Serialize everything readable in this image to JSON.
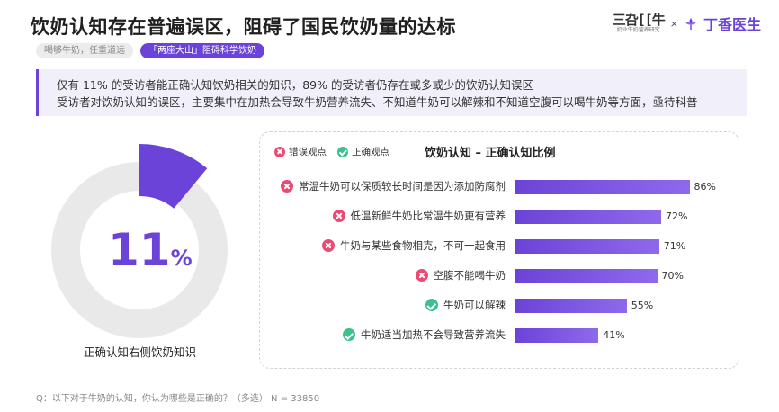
{
  "header": {
    "title": "饮奶认知存在普遍误区，阻碍了国民饮奶量的达标",
    "tags": [
      "喝够牛奶，任重道远",
      "「两座大山」阻碍科学饮奶"
    ]
  },
  "brand": {
    "partner_big": "三叴[[牛",
    "partner_small": "奶业牛奶营养研究",
    "times": "×",
    "name": "丁香医生",
    "color": "#6c43d8"
  },
  "callout": {
    "line1": "仅有 11% 的受访者能正确认知饮奶相关的知识，89% 的受访者仍存在或多或少的饮奶认知误区",
    "line2": "受访者对饮奶认知的误区，主要集中在加热会导致牛奶营养流失、不知道牛奶可以解辣和不知道空腹可以喝牛奶等方面，亟待科普"
  },
  "donut": {
    "value_text": "11",
    "unit": "%",
    "caption": "正确认知右侧饮奶知识"
  },
  "panel": {
    "title": "饮奶认知 – 正确认知比例",
    "legend_wrong": "错误观点",
    "legend_right": "正确观点"
  },
  "chart_data": [
    {
      "type": "pie",
      "values": [
        11,
        89
      ],
      "colors": [
        "#6c43d8",
        "#e9e9e9"
      ],
      "center_label": "11%",
      "caption": "正确认知右侧饮奶知识"
    },
    {
      "type": "bar",
      "orientation": "horizontal",
      "title": "饮奶认知 – 正确认知比例",
      "categories": [
        "常温牛奶可以保质较长时间是因为添加防腐剂",
        "低温新鲜牛奶比常温牛奶更有营养",
        "牛奶与某些食物相克，不可一起食用",
        "空腹不能喝牛奶",
        "牛奶可以解辣",
        "牛奶适当加热不会导致营养流失"
      ],
      "values": [
        86,
        72,
        71,
        70,
        55,
        41
      ],
      "value_labels": [
        "86%",
        "72%",
        "71%",
        "70%",
        "55%",
        "41%"
      ],
      "kinds": [
        "wrong",
        "wrong",
        "wrong",
        "wrong",
        "right",
        "right"
      ],
      "legend": [
        "错误观点",
        "正确观点"
      ],
      "xlim": [
        0,
        100
      ],
      "bar_color": "#6c43d8"
    }
  ],
  "footnote": "Q：以下对于牛奶的认知，你认为哪些是正确的？（多选） N = 33850"
}
